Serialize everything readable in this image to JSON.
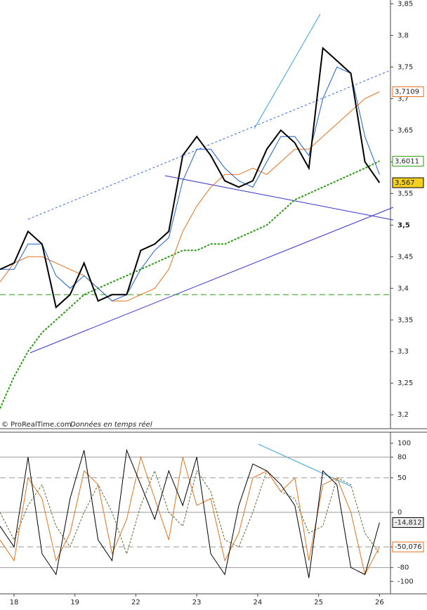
{
  "chart_data": [
    {
      "type": "line",
      "x": [
        -0.23,
        0,
        0.23,
        0.46,
        0.69,
        0.92,
        1.15,
        1.38,
        1.61,
        1.85,
        2.08,
        2.31,
        2.54,
        2.77,
        3.0,
        3.23,
        3.46,
        3.69,
        3.92,
        4.15,
        4.38,
        4.61,
        4.84,
        5.07,
        5.3,
        5.53,
        5.76,
        6.0
      ],
      "series": [
        {
          "name": null,
          "color": "#2a9a10",
          "dash": true,
          "width": 2,
          "values": [
            3.21,
            3.26,
            3.3,
            3.33,
            3.35,
            3.37,
            3.39,
            3.4,
            3.41,
            3.42,
            3.43,
            3.44,
            3.45,
            3.46,
            3.46,
            3.47,
            3.47,
            3.48,
            3.49,
            3.5,
            3.52,
            3.54,
            3.55,
            3.56,
            3.57,
            3.58,
            3.59,
            3.6011
          ],
          "value_labels": [
            null,
            null,
            null,
            null,
            null,
            null,
            null,
            null,
            null,
            null,
            null,
            null,
            null,
            null,
            null,
            null,
            null,
            null,
            null,
            null,
            null,
            null,
            null,
            null,
            null,
            null,
            null,
            "3,6011"
          ]
        },
        {
          "name": null,
          "color": "#e8701a",
          "dash": false,
          "width": 1,
          "values": [
            3.41,
            3.44,
            3.45,
            3.45,
            3.44,
            3.43,
            3.42,
            3.4,
            3.38,
            3.38,
            3.39,
            3.4,
            3.43,
            3.49,
            3.53,
            3.56,
            3.58,
            3.58,
            3.59,
            3.58,
            3.6,
            3.62,
            3.62,
            3.64,
            3.66,
            3.68,
            3.7,
            3.7109
          ],
          "value_labels": [
            null,
            null,
            null,
            null,
            null,
            null,
            null,
            null,
            null,
            null,
            null,
            null,
            null,
            null,
            null,
            null,
            null,
            null,
            null,
            null,
            null,
            null,
            null,
            null,
            null,
            null,
            null,
            "3,7109"
          ]
        },
        {
          "name": null,
          "color": "#1f5fd0",
          "dash": false,
          "width": 1,
          "values": [
            3.43,
            3.43,
            3.47,
            3.47,
            3.42,
            3.4,
            3.42,
            3.4,
            3.38,
            3.39,
            3.43,
            3.46,
            3.48,
            3.57,
            3.62,
            3.62,
            3.59,
            3.57,
            3.56,
            3.6,
            3.64,
            3.64,
            3.61,
            3.7,
            3.75,
            3.74,
            3.64,
            3.58
          ]
        },
        {
          "name": null,
          "color": "#000000",
          "dash": false,
          "width": 2,
          "values": [
            3.43,
            3.44,
            3.49,
            3.47,
            3.37,
            3.39,
            3.44,
            3.38,
            3.39,
            3.39,
            3.46,
            3.47,
            3.49,
            3.61,
            3.64,
            3.61,
            3.57,
            3.56,
            3.57,
            3.62,
            3.65,
            3.63,
            3.59,
            3.78,
            3.76,
            3.74,
            3.6,
            3.567
          ],
          "value_labels": [
            null,
            null,
            null,
            null,
            null,
            null,
            null,
            null,
            null,
            null,
            null,
            null,
            null,
            null,
            null,
            null,
            null,
            null,
            null,
            null,
            null,
            null,
            null,
            null,
            null,
            null,
            null,
            "3,567"
          ]
        }
      ],
      "hlines": [
        {
          "value": 3.39,
          "color": "#2a9a10"
        }
      ],
      "xlim": [
        -0.23,
        6.18
      ],
      "ylim": [
        3.178,
        3.856
      ],
      "yticks": [
        {
          "value": 3.2,
          "label": "3,2"
        },
        {
          "value": 3.25,
          "label": "3,25"
        },
        {
          "value": 3.3,
          "label": "3,3"
        },
        {
          "value": 3.35,
          "label": "3,35"
        },
        {
          "value": 3.4,
          "label": "3,4"
        },
        {
          "value": 3.45,
          "label": "3,45"
        },
        {
          "value": 3.5,
          "label": "3,5"
        },
        {
          "value": 3.55,
          "label": "3,55"
        },
        {
          "value": 3.6,
          "label": "3,6"
        },
        {
          "value": 3.65,
          "label": "3,65"
        },
        {
          "value": 3.7,
          "label": "3,7"
        },
        {
          "value": 3.75,
          "label": "3,75"
        },
        {
          "value": 3.8,
          "label": "3,8"
        },
        {
          "value": 3.85,
          "label": "3,85"
        }
      ],
      "bold_tick": 6,
      "grid": false,
      "source": "© ProRealTime.com",
      "source_note": "Données en temps réel"
    },
    {
      "type": "line",
      "x": [
        -0.23,
        0,
        0.23,
        0.46,
        0.69,
        0.92,
        1.15,
        1.38,
        1.61,
        1.85,
        2.08,
        2.31,
        2.54,
        2.77,
        3.0,
        3.23,
        3.46,
        3.69,
        3.92,
        4.15,
        4.38,
        4.61,
        4.84,
        5.07,
        5.3,
        5.53,
        5.76,
        6.0
      ],
      "series": [
        {
          "name": null,
          "color": "#556b2f",
          "dash": true,
          "width": 1,
          "values": [
            0,
            -40,
            10,
            40,
            -20,
            -50,
            0,
            40,
            0,
            -60,
            10,
            60,
            0,
            -20,
            60,
            30,
            -40,
            -50,
            0,
            60,
            30,
            20,
            -30,
            -20,
            50,
            40,
            -30,
            -60
          ]
        },
        {
          "name": null,
          "color": "#e8701a",
          "dash": false,
          "width": 1,
          "values": [
            -40,
            -70,
            50,
            20,
            -70,
            -30,
            60,
            40,
            -60,
            -10,
            80,
            20,
            -40,
            80,
            10,
            20,
            -70,
            -30,
            50,
            60,
            30,
            50,
            -70,
            40,
            50,
            0,
            -90,
            -50.076
          ],
          "value_labels": [
            null,
            null,
            null,
            null,
            null,
            null,
            null,
            null,
            null,
            null,
            null,
            null,
            null,
            null,
            null,
            null,
            null,
            null,
            null,
            null,
            null,
            null,
            null,
            null,
            null,
            null,
            null,
            "-50,076"
          ]
        },
        {
          "name": null,
          "color": "#000000",
          "dash": false,
          "width": 1,
          "values": [
            -20,
            -50,
            80,
            -60,
            -90,
            20,
            90,
            -40,
            -70,
            90,
            40,
            -10,
            60,
            10,
            80,
            -60,
            -90,
            10,
            70,
            60,
            40,
            10,
            -95,
            60,
            40,
            -80,
            -90,
            -14.812
          ],
          "value_labels": [
            null,
            null,
            null,
            null,
            null,
            null,
            null,
            null,
            null,
            null,
            null,
            null,
            null,
            null,
            null,
            null,
            null,
            null,
            null,
            null,
            null,
            null,
            null,
            null,
            null,
            null,
            null,
            "-14,812"
          ]
        }
      ],
      "xlim": [
        -0.23,
        6.18
      ],
      "ylim": [
        -118,
        116
      ],
      "yticks": [
        -100,
        -80,
        -50,
        0,
        50,
        80,
        100
      ],
      "grid": true,
      "xticks": [
        {
          "value": 0,
          "label": "18"
        },
        {
          "value": 1,
          "label": "19"
        },
        {
          "value": 2,
          "label": "22"
        },
        {
          "value": 3,
          "label": "23"
        },
        {
          "value": 4,
          "label": "24"
        },
        {
          "value": 5,
          "label": "25"
        },
        {
          "value": 6,
          "label": "26"
        }
      ]
    }
  ]
}
